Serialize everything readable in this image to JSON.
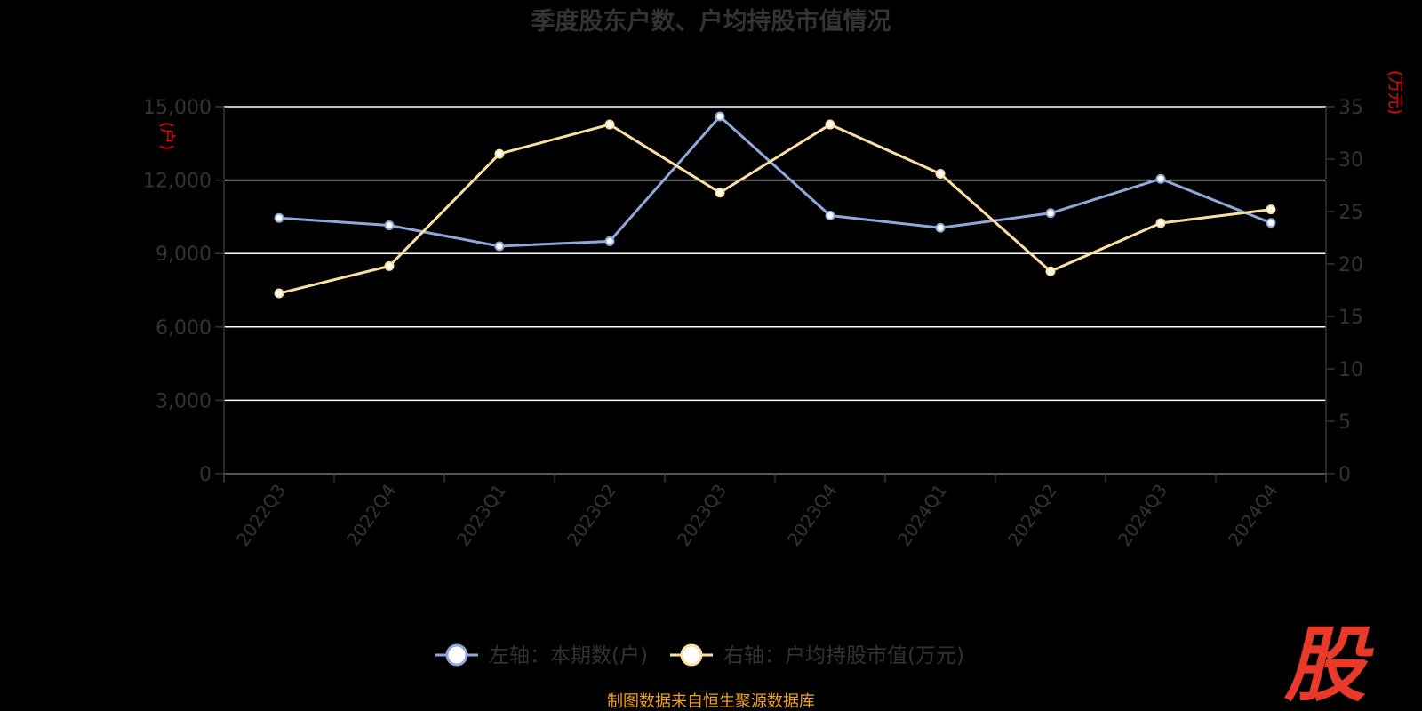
{
  "chart_data": {
    "type": "line",
    "title": "季度股东户数、户均持股市值情况",
    "categories": [
      "2022Q3",
      "2022Q4",
      "2023Q1",
      "2023Q2",
      "2023Q3",
      "2023Q4",
      "2024Q1",
      "2024Q2",
      "2024Q3",
      "2024Q4"
    ],
    "left_axis": {
      "unit": "(户)",
      "ylim": [
        0,
        15000
      ],
      "ticks": [
        "0",
        "3,000",
        "6,000",
        "9,000",
        "12,000",
        "15,000"
      ]
    },
    "right_axis": {
      "unit": "(万元)",
      "ylim": [
        0,
        35
      ],
      "ticks": [
        "0",
        "5",
        "10",
        "15",
        "20",
        "25",
        "30",
        "35"
      ]
    },
    "series": [
      {
        "name": "左轴：本期数(户)",
        "axis": "left",
        "color": "#8ea9d9",
        "values": [
          10450,
          10150,
          9300,
          9500,
          14600,
          10550,
          10050,
          10650,
          12050,
          10250
        ]
      },
      {
        "name": "右轴：户均持股市值(万元)",
        "axis": "right",
        "color": "#fbdfa2",
        "values": [
          17.2,
          19.8,
          30.5,
          33.3,
          26.8,
          33.3,
          28.6,
          19.3,
          23.9,
          25.2
        ]
      }
    ],
    "grid": true,
    "legend": "bottom-center"
  },
  "source": "制图数据来自恒生聚源数据库",
  "logo": "股"
}
